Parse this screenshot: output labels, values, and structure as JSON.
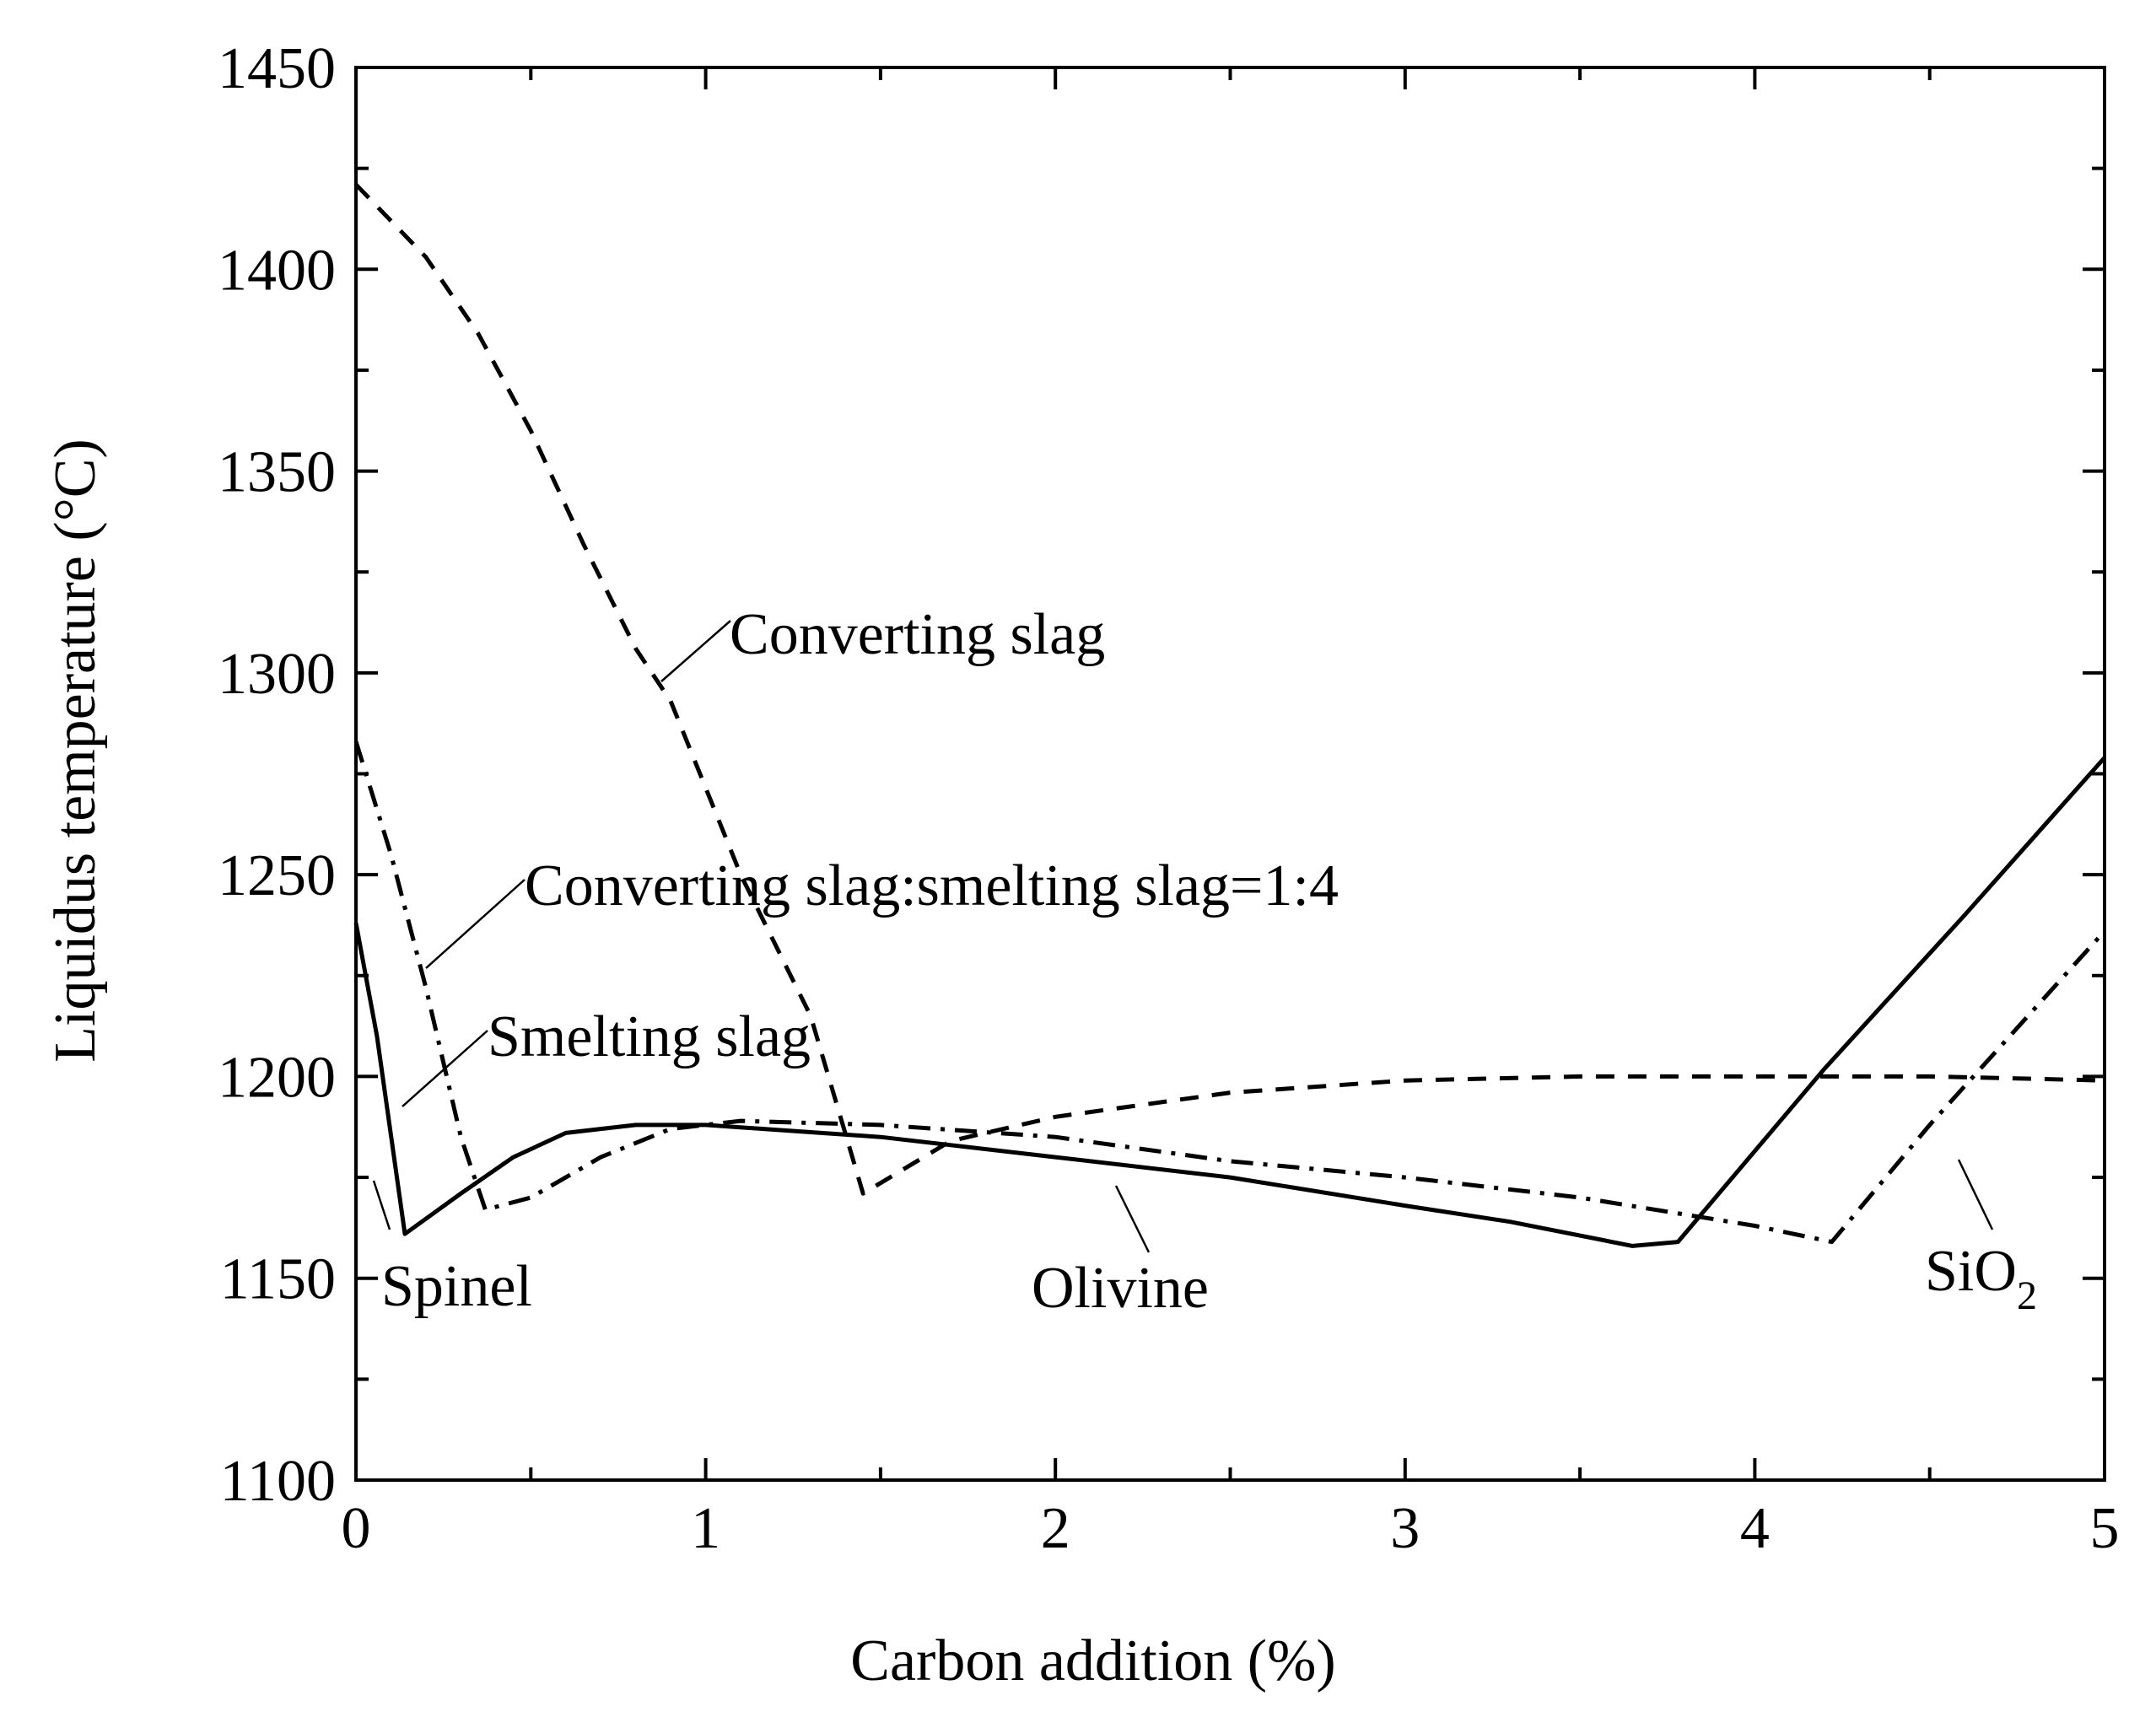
{
  "chart_data": {
    "type": "line",
    "title": "",
    "xlabel": "Carbon addition (%)",
    "ylabel": "Liquidus temperature (°C)",
    "xlim": [
      0,
      5
    ],
    "ylim": [
      1100,
      1450
    ],
    "x_ticks": [
      0,
      1,
      2,
      3,
      4,
      5
    ],
    "x_tick_labels": [
      "0",
      "1",
      "2",
      "3",
      "4",
      "5"
    ],
    "y_ticks": [
      1100,
      1150,
      1200,
      1250,
      1300,
      1350,
      1400,
      1450
    ],
    "y_tick_labels": [
      "1100",
      "1150",
      "1200",
      "1250",
      "1300",
      "1350",
      "1400",
      "1450"
    ],
    "grid": false,
    "series": [
      {
        "name": "Converting slag",
        "style": "dashed",
        "color": "#000000",
        "points": [
          [
            0,
            1421
          ],
          [
            0.2,
            1403
          ],
          [
            0.35,
            1384
          ],
          [
            0.5,
            1360
          ],
          [
            0.65,
            1332
          ],
          [
            0.8,
            1306
          ],
          [
            0.9,
            1293
          ],
          [
            1.1,
            1250
          ],
          [
            1.3,
            1215
          ],
          [
            1.45,
            1171
          ],
          [
            1.7,
            1184
          ],
          [
            2.0,
            1190
          ],
          [
            2.5,
            1196
          ],
          [
            3.0,
            1199
          ],
          [
            3.5,
            1200
          ],
          [
            4.0,
            1200
          ],
          [
            4.5,
            1200
          ],
          [
            5.0,
            1199
          ]
        ]
      },
      {
        "name": "Converting slag:smelting slag=1:4",
        "style": "dash-dot",
        "color": "#000000",
        "points": [
          [
            0,
            1283
          ],
          [
            0.1,
            1255
          ],
          [
            0.2,
            1222
          ],
          [
            0.3,
            1185
          ],
          [
            0.37,
            1167
          ],
          [
            0.5,
            1170
          ],
          [
            0.7,
            1180
          ],
          [
            0.9,
            1187
          ],
          [
            1.1,
            1189
          ],
          [
            1.5,
            1188
          ],
          [
            2.0,
            1185
          ],
          [
            2.5,
            1179
          ],
          [
            3.0,
            1175
          ],
          [
            3.5,
            1170
          ],
          [
            4.0,
            1163
          ],
          [
            4.22,
            1159
          ],
          [
            4.5,
            1188
          ],
          [
            5.0,
            1236
          ]
        ]
      },
      {
        "name": "Smelting slag",
        "style": "solid",
        "color": "#000000",
        "points": [
          [
            0,
            1238
          ],
          [
            0.06,
            1210
          ],
          [
            0.14,
            1161
          ],
          [
            0.3,
            1171
          ],
          [
            0.45,
            1180
          ],
          [
            0.6,
            1186
          ],
          [
            0.8,
            1188
          ],
          [
            1.0,
            1188
          ],
          [
            1.5,
            1185
          ],
          [
            2.0,
            1180
          ],
          [
            2.5,
            1175
          ],
          [
            3.0,
            1168
          ],
          [
            3.3,
            1164
          ],
          [
            3.65,
            1158
          ],
          [
            3.78,
            1159
          ],
          [
            4.2,
            1202
          ],
          [
            4.6,
            1240
          ],
          [
            5.0,
            1279
          ]
        ]
      }
    ],
    "annotations": [
      {
        "text": "Converting slag",
        "points_to": "Converting slag curve near x=0.9"
      },
      {
        "text": "Converting slag:smelting slag=1:4",
        "points_to": "blend curve near x=0.2"
      },
      {
        "text": "Smelting slag",
        "points_to": "smelting slag curve near x=0.13"
      },
      {
        "text": "Spinel",
        "points_to": "spinel primary phase region near x=0.05"
      },
      {
        "text": "Olivine",
        "points_to": "olivine primary phase region near x=2.3"
      },
      {
        "text": "SiO",
        "subscript": "2",
        "points_to": "SiO2 primary phase region near x=4.6"
      }
    ]
  }
}
